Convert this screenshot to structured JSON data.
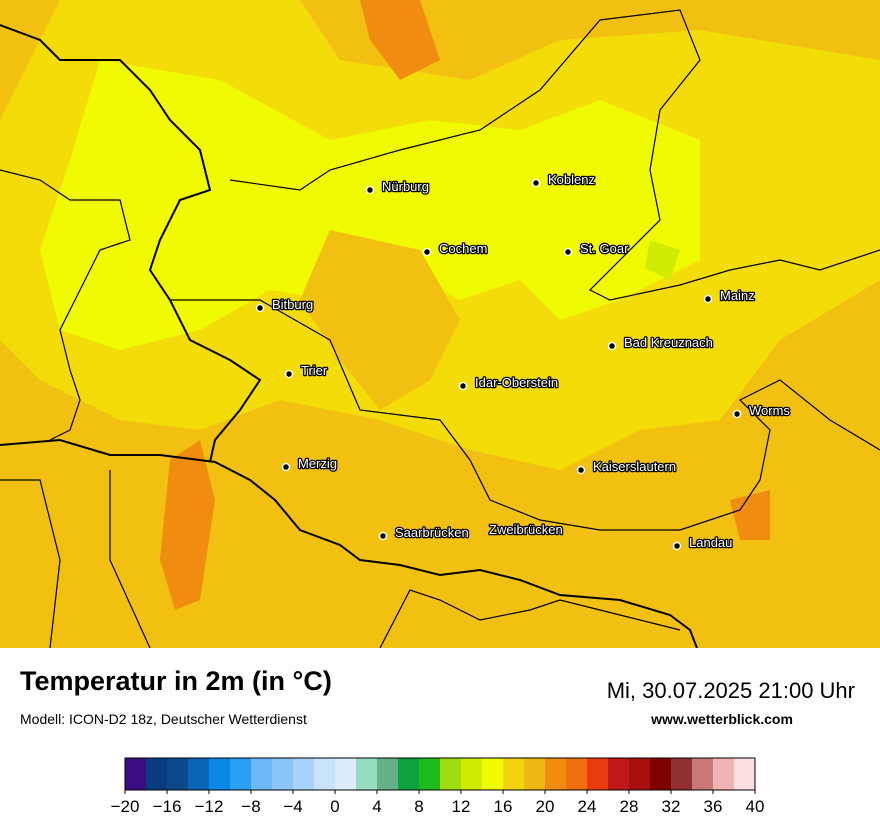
{
  "map": {
    "cities": [
      "Nürburg",
      "Koblenz",
      "Cochem",
      "St. Goar",
      "Bitburg",
      "Mainz",
      "Bad Kreuznach",
      "Trier",
      "Idar-Oberstein",
      "Worms",
      "Merzig",
      "Kaiserslautern",
      "Saarbrücken",
      "Zweibrücken",
      "Landau"
    ]
  },
  "footer": {
    "title": "Temperatur in 2m (in °C)",
    "subtitle": "Modell: ICON-D2 18z, Deutscher Wetterdienst",
    "datetime": "Mi, 30.07.2025 21:00 Uhr",
    "website": "www.wetterblick.com"
  },
  "legend": {
    "colors": [
      "#3a0e82",
      "#0a3a80",
      "#0a4a8c",
      "#0a64b8",
      "#0a88e8",
      "#2aa0f4",
      "#6cb8f8",
      "#8cc6f8",
      "#a8d4fa",
      "#c8e2fc",
      "#dcecfc",
      "#96dcc0",
      "#64b08a",
      "#10a040",
      "#1cbc1c",
      "#a0dc10",
      "#d0ec00",
      "#f0fa00",
      "#f2d410",
      "#f0b814",
      "#f08c10",
      "#f07010",
      "#e83c10",
      "#c01818",
      "#a81010",
      "#800000",
      "#903030",
      "#c87878",
      "#f0b4b4",
      "#fce0e0"
    ],
    "ticks": [
      {
        "value": -20,
        "label": "−20"
      },
      {
        "value": -16,
        "label": "−16"
      },
      {
        "value": -12,
        "label": "−12"
      },
      {
        "value": -8,
        "label": "−8"
      },
      {
        "value": -4,
        "label": "−4"
      },
      0,
      4,
      8,
      12,
      16,
      20,
      24,
      28,
      32,
      36,
      40
    ]
  }
}
